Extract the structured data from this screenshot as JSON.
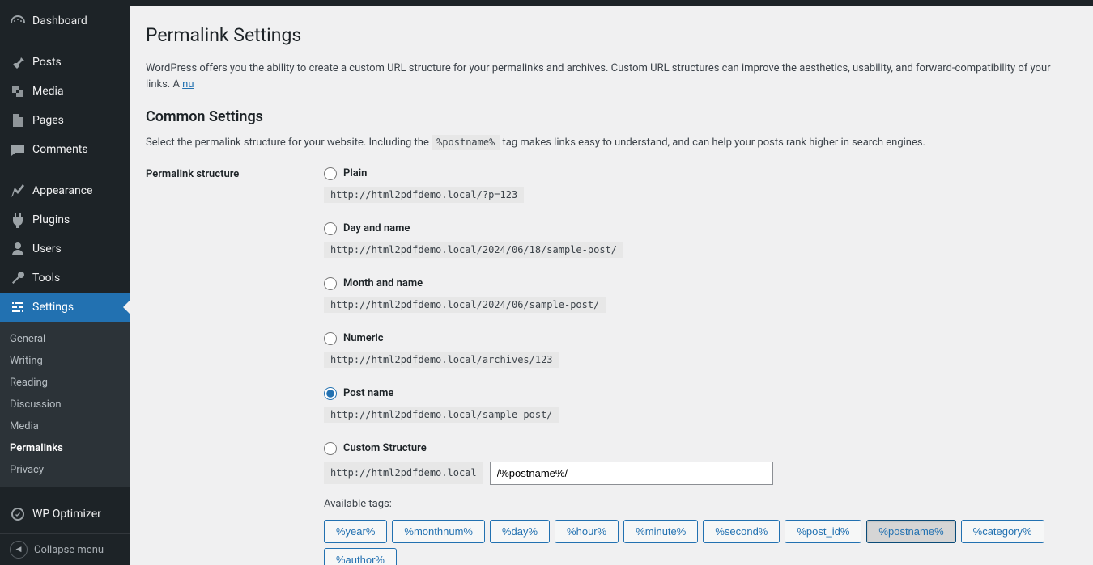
{
  "sidebar": {
    "items": [
      {
        "label": "Dashboard",
        "icon": "dashboard"
      },
      {
        "label": "Posts",
        "icon": "pin"
      },
      {
        "label": "Media",
        "icon": "media"
      },
      {
        "label": "Pages",
        "icon": "pages"
      },
      {
        "label": "Comments",
        "icon": "comments"
      },
      {
        "label": "Appearance",
        "icon": "appearance"
      },
      {
        "label": "Plugins",
        "icon": "plugins"
      },
      {
        "label": "Users",
        "icon": "users"
      },
      {
        "label": "Tools",
        "icon": "tools"
      },
      {
        "label": "Settings",
        "icon": "settings"
      },
      {
        "label": "WP Optimizer",
        "icon": "optimizer"
      }
    ],
    "submenu": [
      "General",
      "Writing",
      "Reading",
      "Discussion",
      "Media",
      "Permalinks",
      "Privacy"
    ],
    "submenu_active": "Permalinks",
    "collapse_label": "Collapse menu"
  },
  "page": {
    "title": "Permalink Settings",
    "intro": "WordPress offers you the ability to create a custom URL structure for your permalinks and archives. Custom URL structures can improve the aesthetics, usability, and forward-compatibility of your links. A ",
    "intro_link": "nu",
    "common_heading": "Common Settings",
    "common_desc_1": "Select the permalink structure for your website. Including the ",
    "common_tag": "%postname%",
    "common_desc_2": " tag makes links easy to understand, and can help your posts rank higher in search engines.",
    "structure_label": "Permalink structure",
    "options": [
      {
        "label": "Plain",
        "example": "http://html2pdfdemo.local/?p=123",
        "checked": false
      },
      {
        "label": "Day and name",
        "example": "http://html2pdfdemo.local/2024/06/18/sample-post/",
        "checked": false
      },
      {
        "label": "Month and name",
        "example": "http://html2pdfdemo.local/2024/06/sample-post/",
        "checked": false
      },
      {
        "label": "Numeric",
        "example": "http://html2pdfdemo.local/archives/123",
        "checked": false
      },
      {
        "label": "Post name",
        "example": "http://html2pdfdemo.local/sample-post/",
        "checked": true
      },
      {
        "label": "Custom Structure",
        "checked": false
      }
    ],
    "custom_base": "http://html2pdfdemo.local",
    "custom_value": "/%postname%/",
    "tags_label": "Available tags:",
    "tags": [
      "%year%",
      "%monthnum%",
      "%day%",
      "%hour%",
      "%minute%",
      "%second%",
      "%post_id%",
      "%postname%",
      "%category%",
      "%author%"
    ],
    "tag_pressed": "%postname%"
  },
  "colors": {
    "accent": "#2271b1",
    "sidebar_bg": "#1d2327",
    "content_bg": "#f0f0f1",
    "code_bg": "#e7e7e7"
  }
}
